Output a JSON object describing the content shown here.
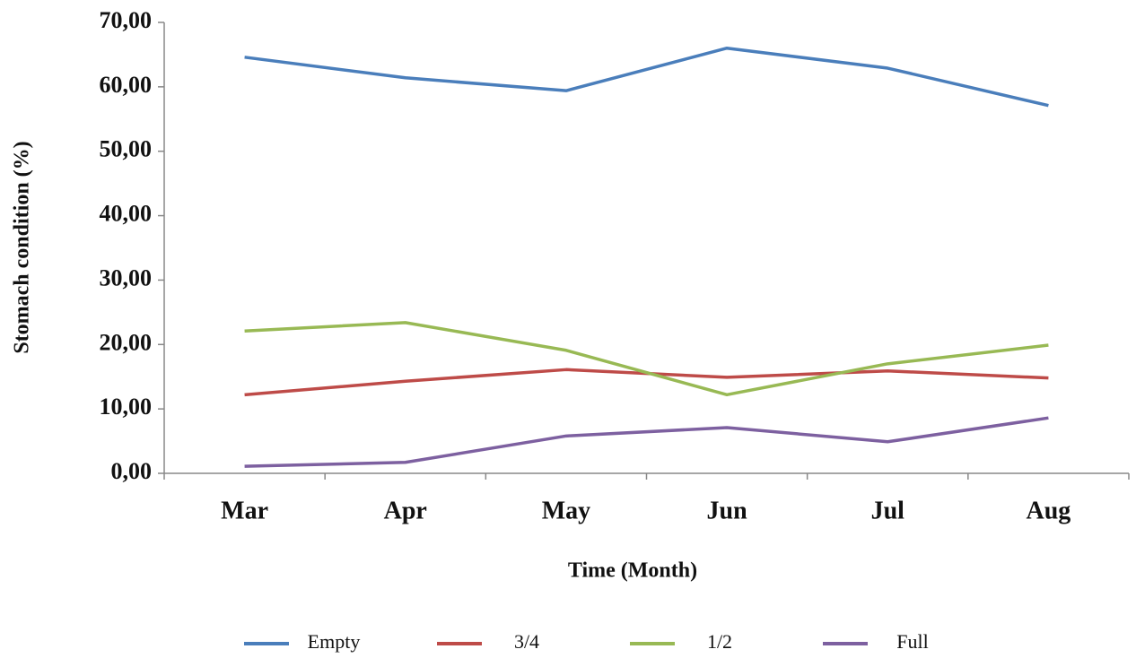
{
  "chart_data": {
    "type": "line",
    "xlabel": "Time (Month)",
    "ylabel": "Stomach condition (%)",
    "categories": [
      "Mar",
      "Apr",
      "May",
      "Jun",
      "Jul",
      "Aug"
    ],
    "series": [
      {
        "name": "Empty",
        "color": "#4a7ebb",
        "values": [
          64.6,
          61.4,
          59.4,
          66.0,
          62.9,
          57.1
        ]
      },
      {
        "name": "3/4",
        "color": "#be4b48",
        "values": [
          12.2,
          14.3,
          16.1,
          14.9,
          15.9,
          14.8
        ]
      },
      {
        "name": "1/2",
        "color": "#98b954",
        "values": [
          22.1,
          23.4,
          19.1,
          12.2,
          17.0,
          19.9
        ]
      },
      {
        "name": "Full",
        "color": "#7d60a0",
        "values": [
          1.1,
          1.7,
          5.8,
          7.1,
          4.9,
          8.6
        ]
      }
    ],
    "ylim": [
      0,
      70
    ],
    "yticks": [
      {
        "value": 0,
        "label": "0,00"
      },
      {
        "value": 10,
        "label": "10,00"
      },
      {
        "value": 20,
        "label": "20,00"
      },
      {
        "value": 30,
        "label": "30,00"
      },
      {
        "value": 40,
        "label": "40,00"
      },
      {
        "value": 50,
        "label": "50,00"
      },
      {
        "value": 60,
        "label": "60,00"
      },
      {
        "value": 70,
        "label": "70,00"
      }
    ],
    "grid": false,
    "legend": "bottom"
  }
}
